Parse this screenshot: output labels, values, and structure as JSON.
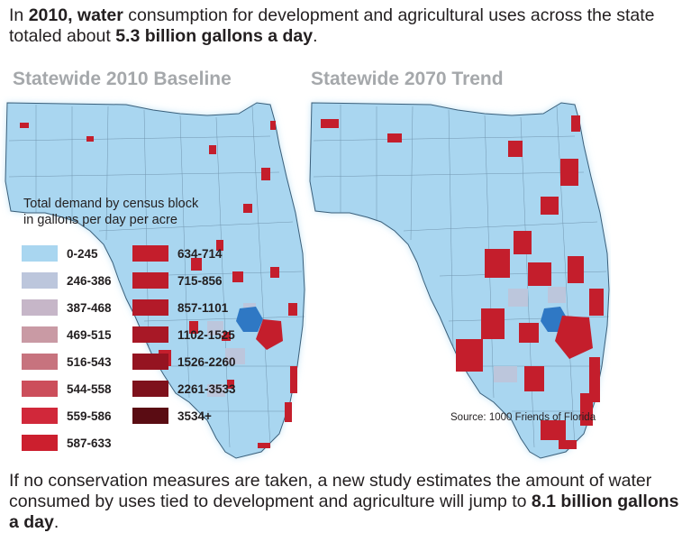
{
  "intro": {
    "parts": [
      {
        "text": "In ",
        "bold": false
      },
      {
        "text": "2010, water",
        "bold": true
      },
      {
        "text": " consumption for development and agricultural uses across the state totaled about ",
        "bold": false
      },
      {
        "text": "5.3 billion gallons a day",
        "bold": true
      },
      {
        "text": ".",
        "bold": false
      }
    ]
  },
  "maps": [
    {
      "title": "Statewide 2010 Baseline"
    },
    {
      "title": "Statewide 2070 Trend"
    }
  ],
  "legend": {
    "title_line1": "Total demand by census block",
    "title_line2": "in gallons per day per acre",
    "items": [
      {
        "label": "0-245",
        "color": "#a9d6f0"
      },
      {
        "label": "246-386",
        "color": "#bcc6dc"
      },
      {
        "label": "387-468",
        "color": "#c6b6c8"
      },
      {
        "label": "469-515",
        "color": "#c99aa4"
      },
      {
        "label": "516-543",
        "color": "#c7737e"
      },
      {
        "label": "544-558",
        "color": "#cc4e5b"
      },
      {
        "label": "559-586",
        "color": "#d1283a"
      },
      {
        "label": "587-633",
        "color": "#cc1f2e"
      },
      {
        "label": "634-714",
        "color": "#c41e2c"
      },
      {
        "label": "715-856",
        "color": "#bd1d2b"
      },
      {
        "label": "857-1101",
        "color": "#b31a29"
      },
      {
        "label": "1102-1525",
        "color": "#a81826"
      },
      {
        "label": "1526-2260",
        "color": "#951421"
      },
      {
        "label": "2261-3533",
        "color": "#7e111c"
      },
      {
        "label": "3534+",
        "color": "#5a0c13"
      }
    ]
  },
  "source": "Source: 1000 Friends of Florida",
  "outro": {
    "parts": [
      {
        "text": "If no conservation measures are taken, a new study estimates the amount of water consumed by uses tied to development and agriculture will jump to ",
        "bold": false
      },
      {
        "text": "8.1 billion gallons a day",
        "bold": true
      },
      {
        "text": ".",
        "bold": false
      }
    ]
  }
}
